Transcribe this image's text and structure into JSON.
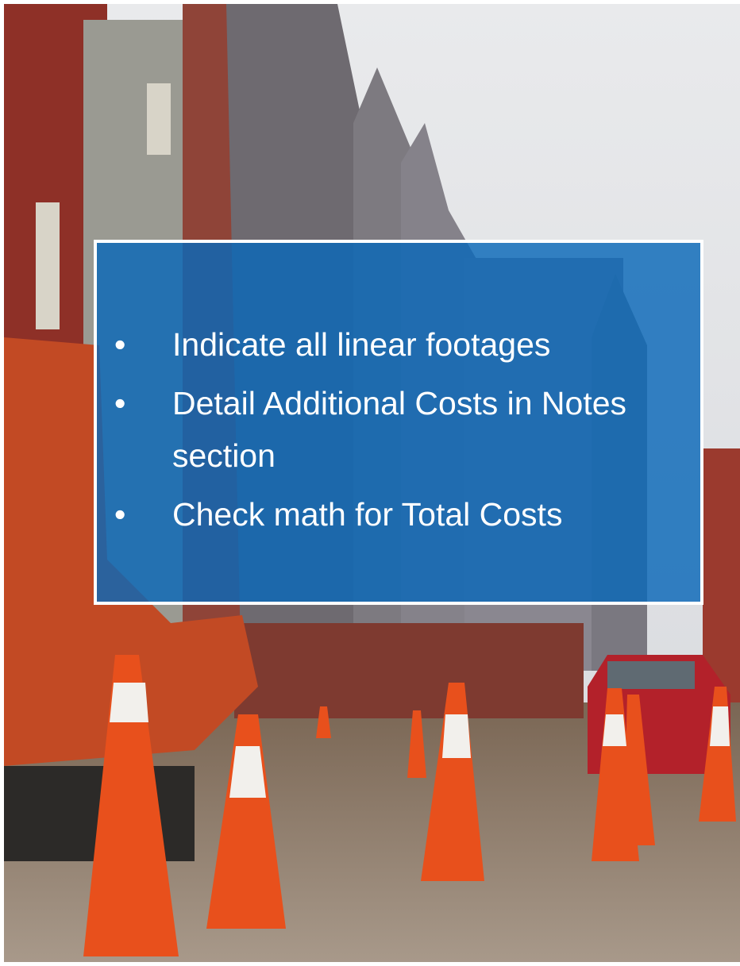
{
  "bullets": [
    "Indicate all linear footages",
    "Detail Additional Costs in Notes section",
    "Check math for Total Costs"
  ]
}
